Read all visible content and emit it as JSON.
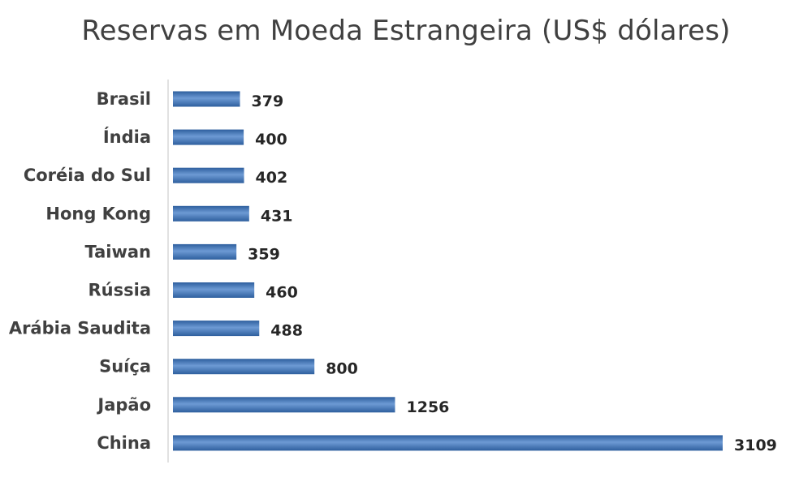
{
  "chart_data": {
    "type": "bar",
    "orientation": "horizontal",
    "title": "Reservas em Moeda Estrangeira (US$ dólares)",
    "categories": [
      "Brasil",
      "Índia",
      "Coréia do Sul",
      "Hong Kong",
      "Taiwan",
      "Rússia",
      "Arábia Saudita",
      "Suíça",
      "Japão",
      "China"
    ],
    "values": [
      379,
      400,
      402,
      431,
      359,
      460,
      488,
      800,
      1256,
      3109
    ],
    "xlim": [
      0,
      3109
    ],
    "grid": false,
    "legend": "none",
    "colors": {
      "bar_dark": "#2e5f9e",
      "bar_light": "#6d9ad4",
      "axis": "#d9d9d9",
      "text": "#404040"
    }
  }
}
